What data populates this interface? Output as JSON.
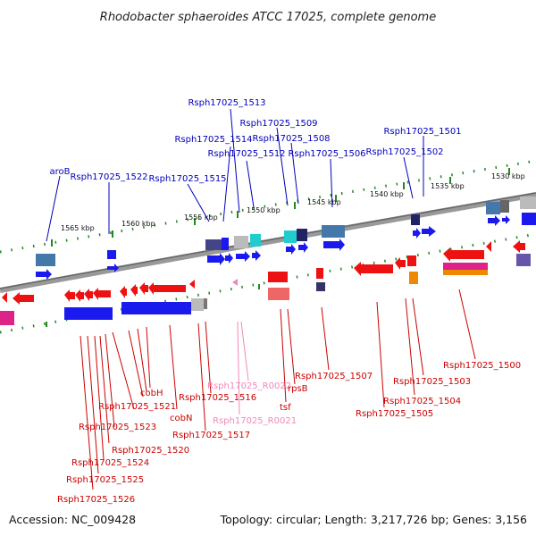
{
  "title": "Rhodobacter sphaeroides ATCC 17025, complete genome",
  "footer": {
    "accession": "Accession: NC_009428",
    "summary": "Topology: circular; Length: 3,217,726 bp; Genes: 3,156"
  },
  "colors": {
    "forward_gene": "#1a1aee",
    "reverse_gene": "#ee1111",
    "forward_label": "#0000bb",
    "reverse_label": "#cc0000",
    "rna_label": "#ee88bb",
    "backbone": "#777777",
    "tick": "#228822"
  },
  "scale": [
    "1565 kbp",
    "1560 kbp",
    "1555 kbp",
    "1550 kbp",
    "1545 kbp",
    "1540 kbp",
    "1535 kbp",
    "1530 kbp"
  ],
  "forward_labels": [
    "aroB",
    "Rsph17025_1522",
    "Rsph17025_1515",
    "Rsph17025_1514",
    "Rsph17025_1513",
    "Rsph17025_1512",
    "Rsph17025_1509",
    "Rsph17025_1508",
    "Rsph17025_1506",
    "Rsph17025_1502",
    "Rsph17025_1501"
  ],
  "reverse_labels": [
    "cobH",
    "Rsph17025_1521",
    "Rsph17025_1523",
    "Rsph17025_1520",
    "Rsph17025_1524",
    "Rsph17025_1525",
    "Rsph17025_1526",
    "cobN",
    "Rsph17025_1516",
    "Rsph17025_1517",
    "Rsph17025_R0022",
    "Rsph17025_R0021",
    "rpsB",
    "tsf",
    "Rsph17025_1507",
    "Rsph17025_1503",
    "Rsph17025_1504",
    "Rsph17025_1505",
    "Rsph17025_1500"
  ]
}
